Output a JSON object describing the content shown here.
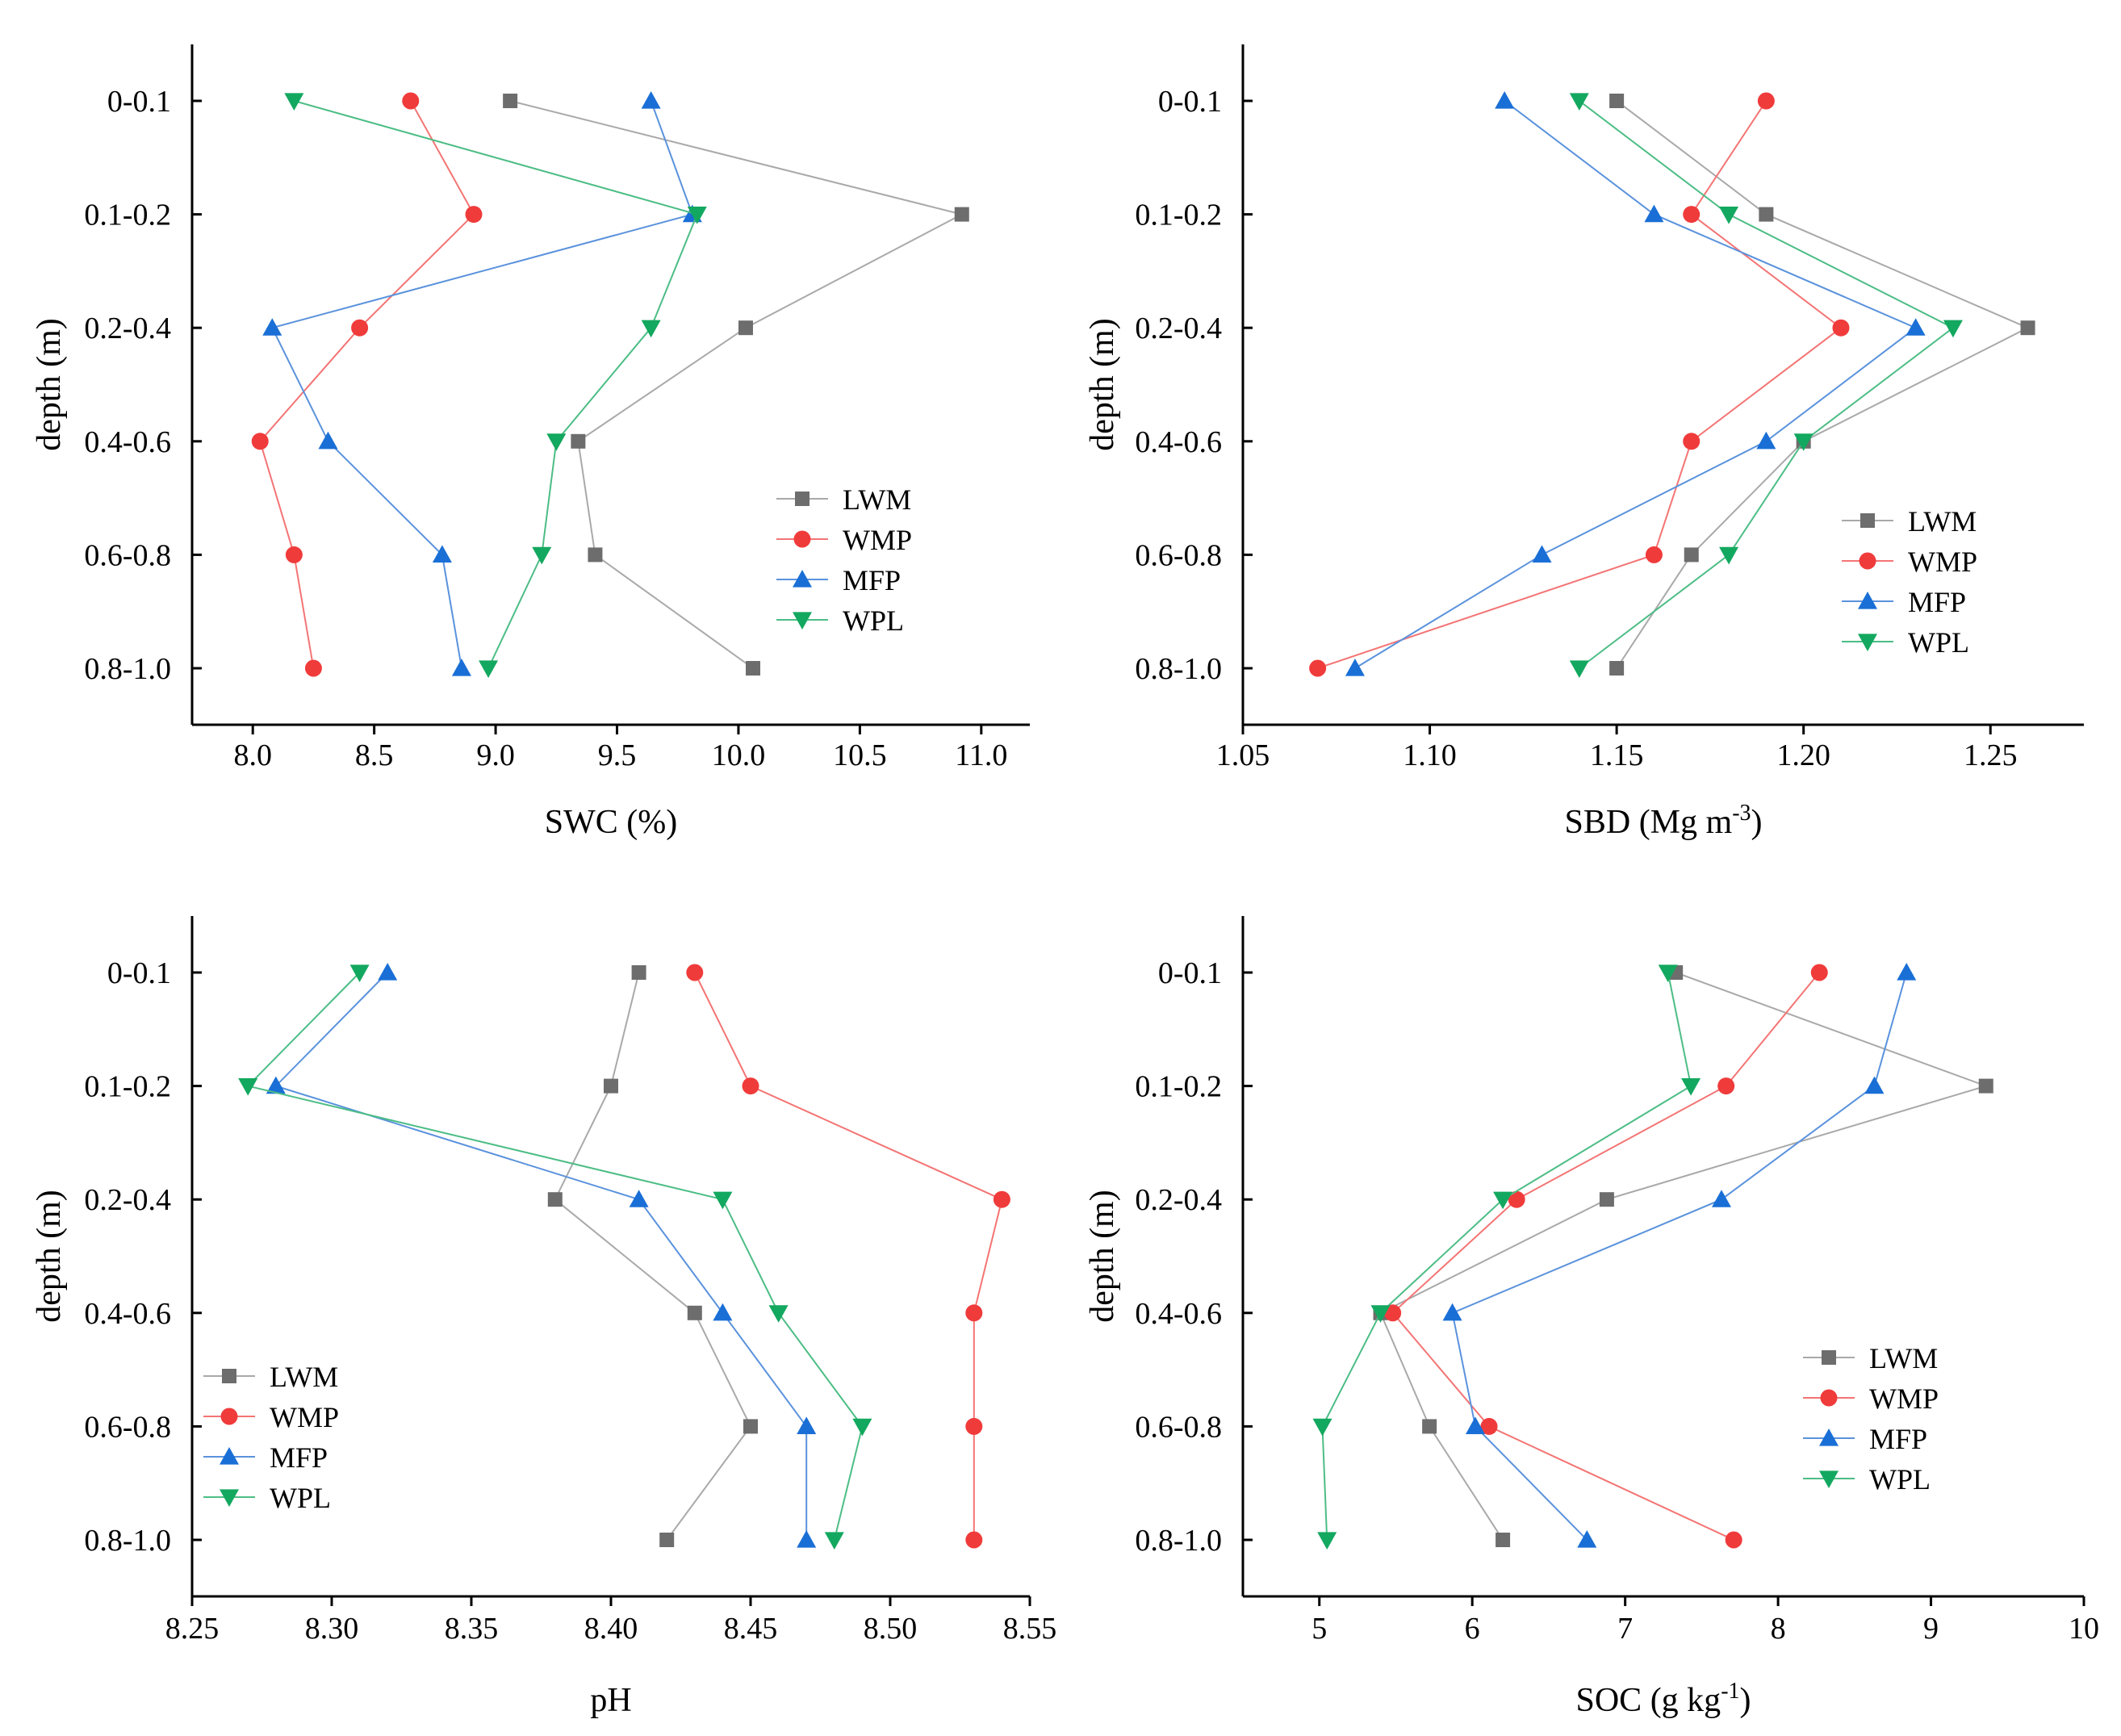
{
  "depth_labels": [
    "0-0.1",
    "0.1-0.2",
    "0.2-0.4",
    "0.4-0.6",
    "0.6-0.8",
    "0.8-1.0"
  ],
  "ylabel": "depth (m)",
  "series_styles": [
    {
      "name": "LWM",
      "color": "#6d6d6d",
      "line_color": "#a9a9a9",
      "marker": "square"
    },
    {
      "name": "WMP",
      "color": "#f03b3b",
      "line_color": "#f47474",
      "marker": "circle"
    },
    {
      "name": "MFP",
      "color": "#1a6fd6",
      "line_color": "#5a92dc",
      "marker": "triangle-up"
    },
    {
      "name": "WPL",
      "color": "#13a85f",
      "line_color": "#4cbd85",
      "marker": "triangle-down"
    }
  ],
  "chart_data": [
    {
      "id": "swc",
      "type": "line",
      "xlabel_main": "SWC (%)",
      "xlabel_sup": "",
      "xlabel_tail": "",
      "xlim": [
        7.75,
        11.2
      ],
      "xticks": [
        8.0,
        8.5,
        9.0,
        9.5,
        10.0,
        10.5,
        11.0
      ],
      "xtick_labels": [
        "8.0",
        "8.5",
        "9.0",
        "9.5",
        "10.0",
        "10.5",
        "11.0"
      ],
      "legend_position": "middle-right",
      "series": [
        {
          "name": "LWM",
          "values": [
            9.06,
            10.92,
            10.03,
            9.34,
            9.41,
            10.06
          ]
        },
        {
          "name": "WMP",
          "values": [
            8.65,
            8.91,
            8.44,
            8.03,
            8.17,
            8.25
          ]
        },
        {
          "name": "MFP",
          "values": [
            9.64,
            9.81,
            8.08,
            8.31,
            8.78,
            8.86
          ]
        },
        {
          "name": "WPL",
          "values": [
            8.17,
            9.83,
            9.64,
            9.25,
            9.19,
            8.97
          ]
        }
      ]
    },
    {
      "id": "sbd",
      "type": "line",
      "xlabel_main": "SBD (Mg m",
      "xlabel_sup": "-3",
      "xlabel_tail": ")",
      "xlim": [
        1.05,
        1.275
      ],
      "xticks": [
        1.05,
        1.1,
        1.15,
        1.2,
        1.25
      ],
      "xtick_labels": [
        "1.05",
        "1.10",
        "1.15",
        "1.20",
        "1.25"
      ],
      "legend_position": "lower-right",
      "series": [
        {
          "name": "LWM",
          "values": [
            1.15,
            1.19,
            1.26,
            1.2,
            1.17,
            1.15
          ]
        },
        {
          "name": "WMP",
          "values": [
            1.19,
            1.17,
            1.21,
            1.17,
            1.16,
            1.07
          ]
        },
        {
          "name": "MFP",
          "values": [
            1.12,
            1.16,
            1.23,
            1.19,
            1.13,
            1.08
          ]
        },
        {
          "name": "WPL",
          "values": [
            1.14,
            1.18,
            1.24,
            1.2,
            1.18,
            1.14
          ]
        }
      ]
    },
    {
      "id": "ph",
      "type": "line",
      "xlabel_main": "pH",
      "xlabel_sup": "",
      "xlabel_tail": "",
      "xlim": [
        8.25,
        8.55
      ],
      "xticks": [
        8.25,
        8.3,
        8.35,
        8.4,
        8.45,
        8.5,
        8.55
      ],
      "xtick_labels": [
        "8.25",
        "8.30",
        "8.35",
        "8.40",
        "8.45",
        "8.50",
        "8.55"
      ],
      "legend_position": "lower-left",
      "series": [
        {
          "name": "LWM",
          "values": [
            8.41,
            8.4,
            8.38,
            8.43,
            8.45,
            8.42
          ]
        },
        {
          "name": "WMP",
          "values": [
            8.43,
            8.45,
            8.54,
            8.53,
            8.53,
            8.53
          ]
        },
        {
          "name": "MFP",
          "values": [
            8.32,
            8.28,
            8.41,
            8.44,
            8.47,
            8.47
          ]
        },
        {
          "name": "WPL",
          "values": [
            8.31,
            8.27,
            8.44,
            8.46,
            8.49,
            8.48
          ]
        }
      ]
    },
    {
      "id": "soc",
      "type": "line",
      "xlabel_main": "SOC (g kg",
      "xlabel_sup": "-1",
      "xlabel_tail": ")",
      "xlim": [
        4.5,
        10.0
      ],
      "xticks": [
        5,
        6,
        7,
        8,
        9,
        10
      ],
      "xtick_labels": [
        "5",
        "6",
        "7",
        "8",
        "9",
        "10"
      ],
      "legend_position": "lower-right",
      "series": [
        {
          "name": "LWM",
          "values": [
            7.33,
            9.36,
            6.88,
            5.4,
            5.72,
            6.2
          ]
        },
        {
          "name": "WMP",
          "values": [
            8.27,
            7.66,
            6.29,
            5.48,
            6.11,
            7.71
          ]
        },
        {
          "name": "MFP",
          "values": [
            8.84,
            8.63,
            7.63,
            5.87,
            6.02,
            6.75
          ]
        },
        {
          "name": "WPL",
          "values": [
            7.28,
            7.43,
            6.2,
            5.4,
            5.02,
            5.05
          ]
        }
      ]
    }
  ]
}
